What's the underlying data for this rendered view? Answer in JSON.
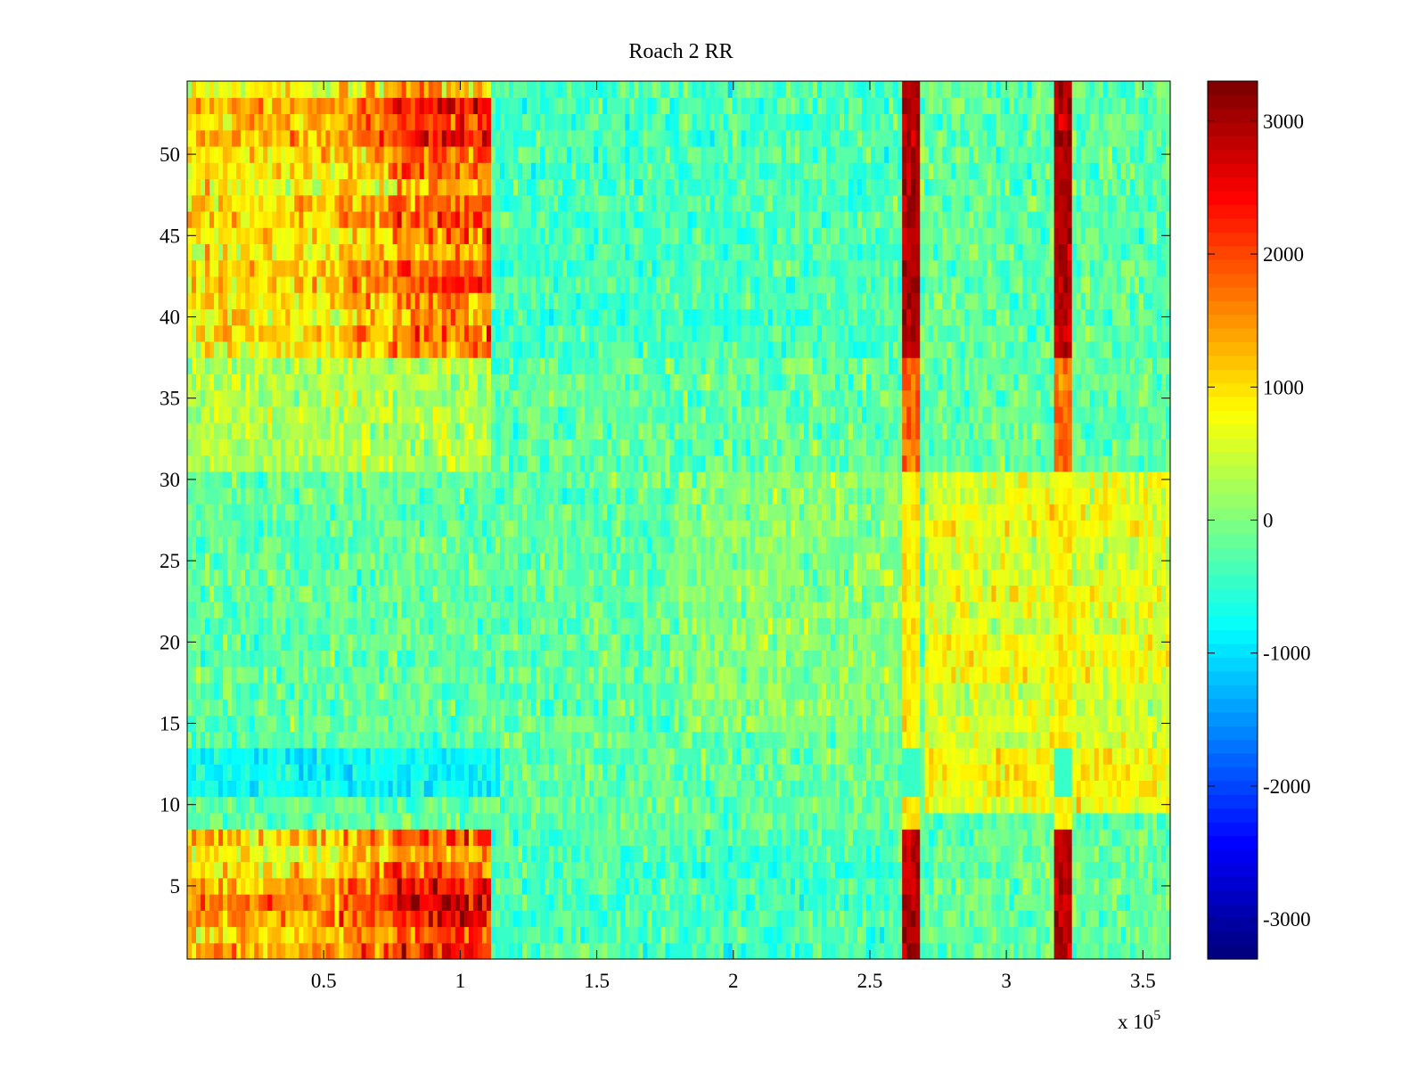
{
  "chart_data": {
    "type": "heatmap",
    "title": "Roach 2 RR",
    "xlabel": "",
    "ylabel": "",
    "x_multiplier_label": "x 10",
    "x_multiplier_exponent": "5",
    "xlim": [
      0,
      3.6
    ],
    "ylim": [
      0.5,
      54.5
    ],
    "x_ticks": [
      0.5,
      1,
      1.5,
      2,
      2.5,
      3,
      3.5
    ],
    "x_tick_labels": [
      "0.5",
      "1",
      "1.5",
      "2",
      "2.5",
      "3",
      "3.5"
    ],
    "y_ticks": [
      5,
      10,
      15,
      20,
      25,
      30,
      35,
      40,
      45,
      50
    ],
    "y_tick_labels": [
      "5",
      "10",
      "15",
      "20",
      "25",
      "30",
      "35",
      "40",
      "45",
      "50"
    ],
    "rows": 54,
    "colormap": "jet",
    "colorbar": {
      "limits": [
        -3300,
        3300
      ],
      "ticks": [
        -3000,
        -2000,
        -1000,
        0,
        1000,
        2000,
        3000
      ],
      "tick_labels": [
        "-3000",
        "-2000",
        "-1000",
        "0",
        "1000",
        "2000",
        "3000"
      ],
      "levels": 64
    },
    "regions_description_values": {
      "hot_block_x_ranges": [
        [
          0.0,
          0.55
        ],
        [
          0.55,
          1.12
        ]
      ],
      "hot_rows_top": [
        38,
        54
      ],
      "hot_rows_bottom": [
        1,
        8
      ],
      "cool_band_rows": [
        11,
        13
      ],
      "vertical_hot_lines_x": [
        2.65,
        3.21
      ],
      "warm_region_x_range": [
        2.7,
        3.6
      ],
      "warm_region_rows": [
        10,
        30
      ]
    }
  }
}
